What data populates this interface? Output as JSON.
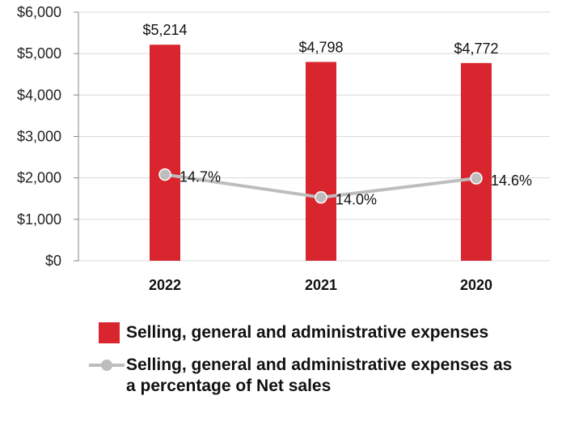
{
  "chart_data": {
    "type": "bar",
    "categories": [
      "2022",
      "2021",
      "2020"
    ],
    "series": [
      {
        "name": "Selling, general and administrative expenses",
        "kind": "bar",
        "values": [
          5214,
          4798,
          4772
        ],
        "labels": [
          "$5,214",
          "$4,798",
          "$4,772"
        ],
        "color": "#d9262e"
      },
      {
        "name": "Selling, general and administrative expenses as a percentage of Net sales",
        "kind": "line",
        "values": [
          14.7,
          14.0,
          14.6
        ],
        "labels": [
          "14.7%",
          "14.0%",
          "14.6%"
        ],
        "plotted_at": [
          2080,
          1530,
          1990
        ],
        "color": "#bdbdbd"
      }
    ],
    "y_ticks": [
      "$0",
      "$1,000",
      "$2,000",
      "$3,000",
      "$4,000",
      "$5,000",
      "$6,000"
    ],
    "y_tick_values": [
      0,
      1000,
      2000,
      3000,
      4000,
      5000,
      6000
    ],
    "ylim": [
      0,
      6000
    ],
    "grid": true,
    "legend_position": "bottom",
    "title": "",
    "xlabel": "",
    "ylabel": ""
  }
}
